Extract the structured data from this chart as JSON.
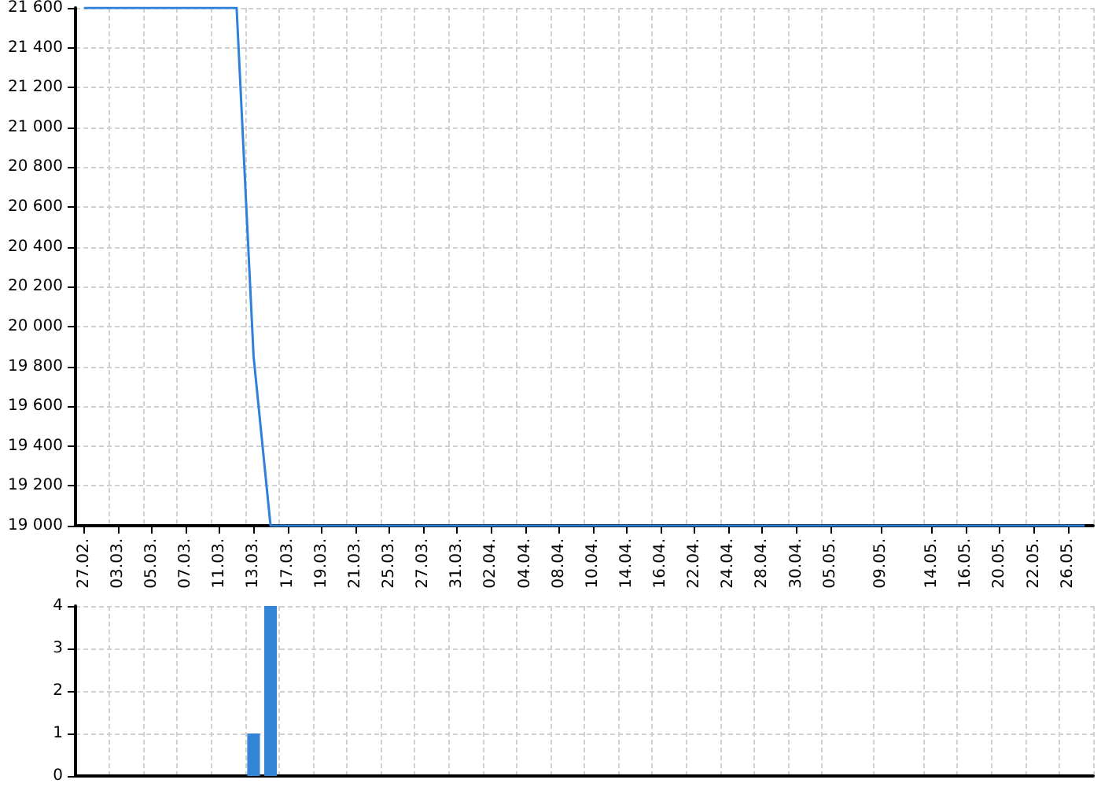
{
  "chart_data": [
    {
      "type": "line",
      "marker": "none",
      "grid": true,
      "color": "#2f80d9",
      "categories": [
        "27.02.",
        null,
        "03.03.",
        null,
        "05.03.",
        null,
        "07.03.",
        null,
        "11.03.",
        null,
        "13.03.",
        null,
        "17.03.",
        null,
        "19.03.",
        null,
        "21.03.",
        null,
        "25.03.",
        null,
        "27.03.",
        null,
        "31.03.",
        null,
        "02.04.",
        null,
        "04.04.",
        null,
        "08.04.",
        null,
        "10.04.",
        null,
        "14.04.",
        null,
        "16.04.",
        null,
        "22.04.",
        null,
        "24.04.",
        null,
        "28.04.",
        null,
        "30.04.",
        null,
        "05.05.",
        null,
        null,
        "09.05.",
        null,
        null,
        "14.05.",
        null,
        "16.05.",
        null,
        "20.05.",
        null,
        "22.05.",
        null,
        "26.05.",
        null
      ],
      "values": [
        21600,
        21600,
        21600,
        21600,
        21600,
        21600,
        21600,
        21600,
        21600,
        21600,
        19850,
        19000,
        19000,
        19000,
        19000,
        19000,
        19000,
        19000,
        19000,
        19000,
        19000,
        19000,
        19000,
        19000,
        19000,
        19000,
        19000,
        19000,
        19000,
        19000,
        19000,
        19000,
        19000,
        19000,
        19000,
        19000,
        19000,
        19000,
        19000,
        19000,
        19000,
        19000,
        19000,
        19000,
        19000,
        19000,
        19000,
        19000,
        19000,
        19000,
        19000,
        19000,
        19000,
        19000,
        19000,
        19000,
        19000,
        19000,
        19000,
        19000
      ],
      "ylim": [
        19000,
        21600
      ],
      "yticks": [
        {
          "value": 19000,
          "label": "19 000"
        },
        {
          "value": 19200,
          "label": "19 200"
        },
        {
          "value": 19400,
          "label": "19 400"
        },
        {
          "value": 19600,
          "label": "19 600"
        },
        {
          "value": 19800,
          "label": "19 800"
        },
        {
          "value": 20000,
          "label": "20 000"
        },
        {
          "value": 20200,
          "label": "20 200"
        },
        {
          "value": 20400,
          "label": "20 400"
        },
        {
          "value": 20600,
          "label": "20 600"
        },
        {
          "value": 20800,
          "label": "20 800"
        },
        {
          "value": 21000,
          "label": "21 000"
        },
        {
          "value": 21200,
          "label": "21 200"
        },
        {
          "value": 21400,
          "label": "21 400"
        },
        {
          "value": 21600,
          "label": "21 600"
        }
      ]
    },
    {
      "type": "bar",
      "grid": true,
      "color": "#3485d8",
      "tick_labels": "y",
      "categories": [
        "27.02.",
        null,
        "03.03.",
        null,
        "05.03.",
        null,
        "07.03.",
        null,
        "11.03.",
        null,
        "13.03.",
        null,
        "17.03.",
        null,
        "19.03.",
        null,
        "21.03.",
        null,
        "25.03.",
        null,
        "27.03.",
        null,
        "31.03.",
        null,
        "02.04.",
        null,
        "04.04.",
        null,
        "08.04.",
        null,
        "10.04.",
        null,
        "14.04.",
        null,
        "16.04.",
        null,
        "22.04.",
        null,
        "24.04.",
        null,
        "28.04.",
        null,
        "30.04.",
        null,
        "05.05.",
        null,
        null,
        "09.05.",
        null,
        null,
        "14.05.",
        null,
        "16.05.",
        null,
        "20.05.",
        null,
        "22.05.",
        null,
        "26.05.",
        null
      ],
      "values": [
        0,
        0,
        0,
        0,
        0,
        0,
        0,
        0,
        0,
        0,
        1,
        4,
        0,
        0,
        0,
        0,
        0,
        0,
        0,
        0,
        0,
        0,
        0,
        0,
        0,
        0,
        0,
        0,
        0,
        0,
        0,
        0,
        0,
        0,
        0,
        0,
        0,
        0,
        0,
        0,
        0,
        0,
        0,
        0,
        0,
        0,
        0,
        0,
        0,
        0,
        0,
        0,
        0,
        0,
        0,
        0,
        0,
        0,
        0,
        0
      ],
      "ylim": [
        0,
        4
      ],
      "yticks": [
        0,
        1,
        2,
        3,
        4
      ]
    }
  ]
}
